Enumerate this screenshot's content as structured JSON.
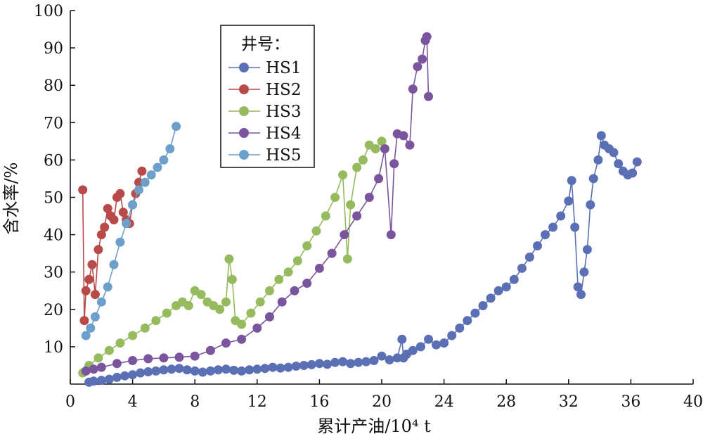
{
  "chart_data": {
    "type": "scatter",
    "title": "",
    "xlabel": "累计产油/10⁴ t",
    "ylabel": "含水率/%",
    "xlim": [
      0,
      40
    ],
    "ylim": [
      0,
      100
    ],
    "xticks": [
      "0",
      "4",
      "8",
      "12",
      "16",
      "20",
      "24",
      "28",
      "32",
      "36",
      "40"
    ],
    "yticks": [
      "10",
      "20",
      "30",
      "40",
      "50",
      "60",
      "70",
      "80",
      "90",
      "100"
    ],
    "grid": false,
    "legend_title": "井号：",
    "legend_position": "upper-left-center",
    "series": [
      {
        "name": "HS1",
        "color": "#5b6fb5",
        "x": [
          1.2,
          1.5,
          2.0,
          2.5,
          3.0,
          3.5,
          4.0,
          4.5,
          5.0,
          5.5,
          6.0,
          6.5,
          7.0,
          7.5,
          8.0,
          8.5,
          9.0,
          9.5,
          10.0,
          10.5,
          11.0,
          11.5,
          12.0,
          12.5,
          13.0,
          13.5,
          14.0,
          14.5,
          15.0,
          15.5,
          16.0,
          16.5,
          17.0,
          17.5,
          18.0,
          18.5,
          19.0,
          19.5,
          20.0,
          20.5,
          21.0,
          21.3,
          21.4,
          21.6,
          22.0,
          22.5,
          23.0,
          23.5,
          24.0,
          24.5,
          25.0,
          25.5,
          26.0,
          26.5,
          27.0,
          27.5,
          28.0,
          28.5,
          29.0,
          29.5,
          30.0,
          30.5,
          31.0,
          31.5,
          32.0,
          32.2,
          32.4,
          32.6,
          32.8,
          33.0,
          33.2,
          33.4,
          33.6,
          33.9,
          34.1,
          34.3,
          34.6,
          34.9,
          35.2,
          35.5,
          35.8,
          36.1,
          36.4
        ],
        "y": [
          0.5,
          0.8,
          1.0,
          1.3,
          1.8,
          2.2,
          2.5,
          3.0,
          3.3,
          3.5,
          3.8,
          4.0,
          4.2,
          3.8,
          3.5,
          3.2,
          3.5,
          3.8,
          4.0,
          3.7,
          3.5,
          3.8,
          4.0,
          4.2,
          4.5,
          4.3,
          4.5,
          4.8,
          5.0,
          5.2,
          5.5,
          5.3,
          5.8,
          6.0,
          5.5,
          5.8,
          6.0,
          6.3,
          7.5,
          6.5,
          7.0,
          12.0,
          7.0,
          8.0,
          9.0,
          10.0,
          12.0,
          10.5,
          11.0,
          13.0,
          15.0,
          17.0,
          19.0,
          21.0,
          23.0,
          25.0,
          26.0,
          28.0,
          31.0,
          34.0,
          37.0,
          40.0,
          42.0,
          45.0,
          49.0,
          54.5,
          42.0,
          26.0,
          24.0,
          30.0,
          36.0,
          48.0,
          55.0,
          60.0,
          66.5,
          64.0,
          63.0,
          62.0,
          59.0,
          57.0,
          56.0,
          56.5,
          59.5
        ]
      },
      {
        "name": "HS2",
        "color": "#b84a4a",
        "x": [
          0.8,
          0.9,
          1.0,
          1.2,
          1.4,
          1.6,
          1.8,
          2.0,
          2.2,
          2.4,
          2.6,
          2.8,
          3.0,
          3.2,
          3.4,
          3.6,
          3.8,
          4.0,
          4.2,
          4.4,
          4.6
        ],
        "y": [
          52.0,
          17.0,
          25.0,
          28.0,
          32.0,
          24.0,
          36.0,
          40.0,
          42.0,
          47.0,
          45.0,
          44.0,
          50.0,
          51.0,
          46.0,
          44.0,
          43.0,
          48.0,
          51.0,
          54.0,
          57.0
        ]
      },
      {
        "name": "HS3",
        "color": "#96bb5e",
        "x": [
          0.8,
          1.2,
          1.8,
          2.5,
          3.2,
          4.0,
          4.8,
          5.5,
          6.2,
          6.8,
          7.2,
          7.6,
          8.0,
          8.4,
          8.8,
          9.2,
          9.6,
          10.0,
          10.2,
          10.4,
          10.6,
          11.0,
          11.6,
          12.2,
          12.8,
          13.4,
          14.0,
          14.6,
          15.2,
          15.8,
          16.4,
          17.0,
          17.5,
          17.8,
          18.0,
          18.4,
          18.8,
          19.2,
          19.6,
          20.0
        ],
        "y": [
          3.0,
          5.0,
          7.0,
          9.0,
          11.0,
          13.0,
          15.0,
          17.0,
          19.0,
          21.0,
          22.0,
          21.0,
          25.0,
          24.0,
          22.0,
          21.0,
          20.0,
          22.0,
          33.5,
          28.0,
          17.0,
          16.0,
          19.0,
          22.0,
          25.0,
          28.0,
          30.0,
          33.0,
          37.0,
          41.0,
          45.0,
          50.0,
          56.0,
          33.5,
          48.0,
          58.0,
          60.0,
          64.0,
          63.0,
          65.0
        ]
      },
      {
        "name": "HS4",
        "color": "#7a559e",
        "x": [
          1.0,
          1.5,
          2.0,
          3.0,
          4.0,
          5.0,
          6.0,
          7.0,
          8.0,
          9.0,
          10.0,
          11.0,
          12.0,
          12.8,
          13.6,
          14.4,
          15.2,
          16.0,
          16.8,
          17.6,
          18.4,
          19.2,
          19.8,
          20.2,
          20.6,
          20.8,
          21.0,
          21.4,
          21.8,
          22.0,
          22.3,
          22.6,
          22.8,
          22.9,
          23.0
        ],
        "y": [
          3.5,
          4.0,
          4.5,
          5.5,
          6.3,
          6.8,
          7.0,
          7.2,
          7.5,
          9.0,
          11.0,
          12.0,
          15.0,
          18.0,
          22.0,
          25.0,
          27.0,
          31.0,
          35.0,
          40.0,
          45.0,
          50.0,
          55.0,
          63.0,
          40.0,
          59.0,
          67.0,
          66.5,
          64.0,
          79.0,
          85.0,
          87.0,
          92.0,
          93.0,
          77.0
        ]
      },
      {
        "name": "HS5",
        "color": "#6d9fcb",
        "x": [
          1.0,
          1.3,
          1.6,
          2.0,
          2.4,
          2.8,
          3.2,
          3.6,
          4.0,
          4.4,
          4.8,
          5.2,
          5.6,
          6.0,
          6.4,
          6.8
        ],
        "y": [
          13.0,
          15.0,
          18.0,
          22.0,
          26.0,
          32.0,
          38.0,
          43.0,
          48.0,
          52.0,
          54.0,
          56.0,
          58.0,
          60.0,
          63.0,
          69.0
        ]
      }
    ]
  }
}
